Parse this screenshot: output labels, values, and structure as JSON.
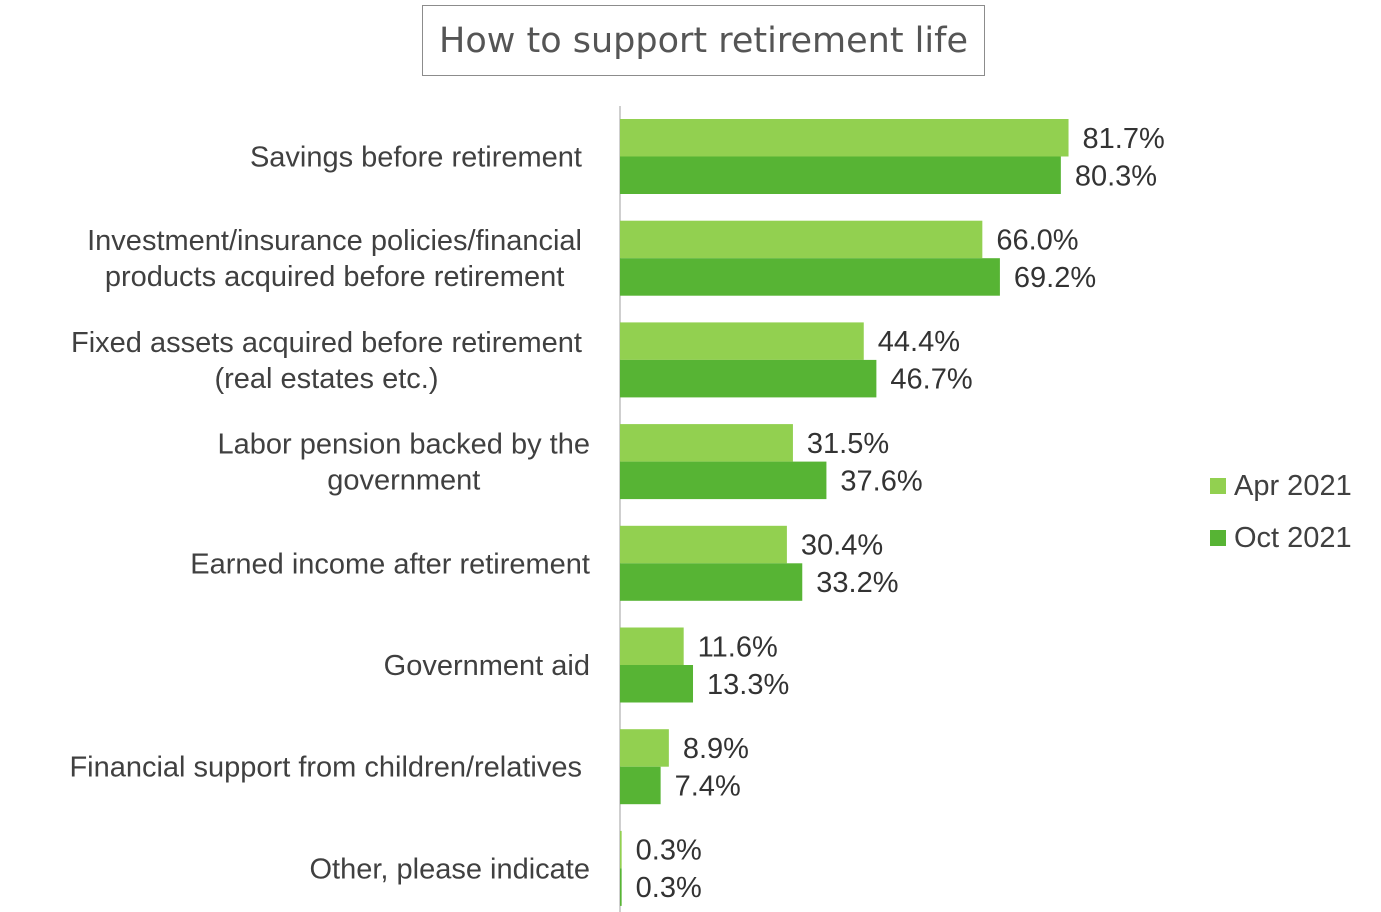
{
  "chart_data": {
    "type": "bar",
    "orientation": "horizontal",
    "title": "How to support retirement life",
    "categories": [
      [
        "Savings before retirement"
      ],
      [
        "Investment/insurance policies/financial",
        "products acquired before retirement"
      ],
      [
        "Fixed assets acquired before retirement",
        "(real estates etc.)"
      ],
      [
        "Labor pension backed by the",
        "government"
      ],
      [
        "Earned income after retirement"
      ],
      [
        "Government aid"
      ],
      [
        "Financial support from children/relatives"
      ],
      [
        "Other, please indicate"
      ]
    ],
    "series": [
      {
        "name": "Apr 2021",
        "color": "#92d050",
        "values": [
          81.7,
          66.0,
          44.4,
          31.5,
          30.4,
          11.6,
          8.9,
          0.3
        ],
        "labels": [
          "81.7%",
          "66.0%",
          "44.4%",
          "31.5%",
          "30.4%",
          "11.6%",
          "8.9%",
          "0.3%"
        ]
      },
      {
        "name": "Oct 2021",
        "color": "#57b434",
        "values": [
          80.3,
          69.2,
          46.7,
          37.6,
          33.2,
          13.3,
          7.4,
          0.3
        ],
        "labels": [
          "80.3%",
          "69.2%",
          "46.7%",
          "37.6%",
          "33.2%",
          "13.3%",
          "7.4%",
          "0.3%"
        ]
      }
    ],
    "xlim": [
      0,
      100
    ],
    "legend_position": "right",
    "grid": false
  }
}
